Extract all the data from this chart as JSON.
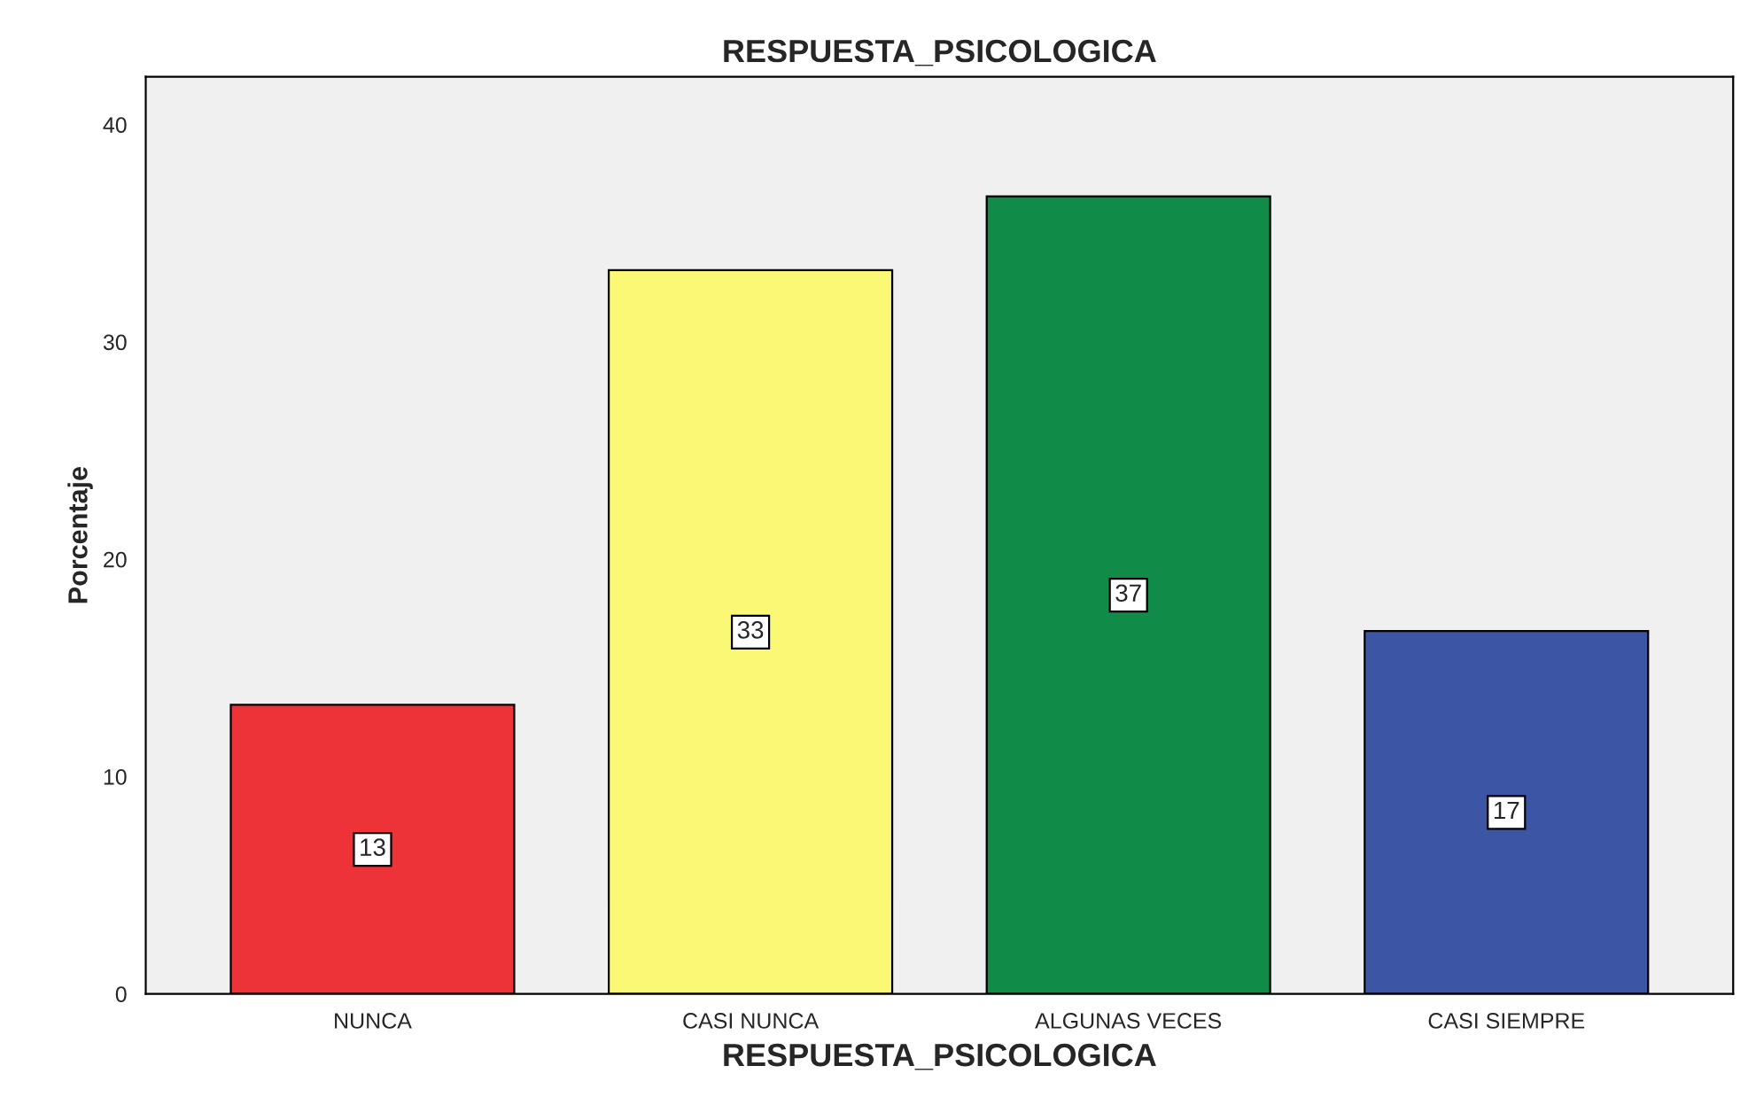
{
  "chart_data": {
    "type": "bar",
    "title": "RESPUESTA_PSICOLOGICA",
    "xlabel": "RESPUESTA_PSICOLOGICA",
    "ylabel": "Porcentaje",
    "categories": [
      "NUNCA",
      "CASI NUNCA",
      "ALGUNAS VECES",
      "CASI SIEMPRE"
    ],
    "values": [
      13.3,
      33.3,
      36.7,
      16.7
    ],
    "colors": [
      "#ee3338",
      "#fbf876",
      "#108c48",
      "#3d55a5"
    ],
    "value_labels": [
      "13",
      "33",
      "37",
      "17"
    ],
    "ylim": [
      0,
      42.2
    ],
    "yticks": [
      0,
      10,
      20,
      30,
      40
    ],
    "grid": false,
    "legend": false
  }
}
